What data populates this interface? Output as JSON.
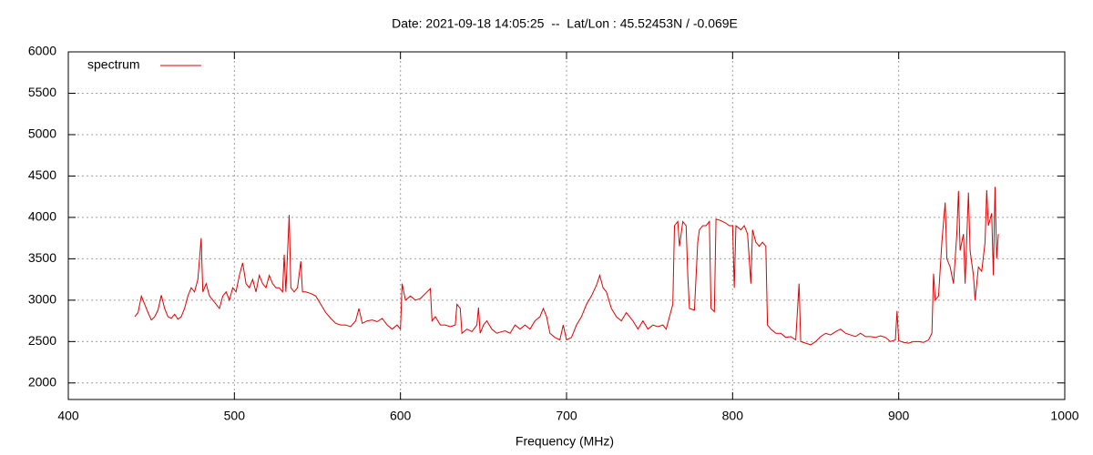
{
  "chart_data": {
    "type": "line",
    "title": "Date: 2021-09-18 14:05:25  --  Lat/Lon : 45.52453N / -0.069E",
    "x_label": "Frequency (MHz)",
    "xlim": [
      400,
      1000
    ],
    "xticks": [
      400,
      500,
      600,
      700,
      800,
      900,
      1000
    ],
    "ylim": [
      1800,
      6000
    ],
    "yticks": [
      2000,
      2500,
      3000,
      3500,
      4000,
      4500,
      5000,
      5500,
      6000
    ],
    "grid": true,
    "legend": "upper left",
    "x": [
      440,
      442,
      444,
      446,
      448,
      450,
      452,
      454,
      456,
      458,
      460,
      462,
      464,
      466,
      468,
      470,
      472,
      474,
      476,
      478,
      480,
      481,
      483,
      485,
      487,
      489,
      491,
      493,
      495,
      497,
      499,
      501,
      503,
      505,
      507,
      509,
      511,
      513,
      515,
      517,
      519,
      521,
      523,
      525,
      527,
      529,
      530,
      531,
      533,
      534,
      536,
      538,
      540,
      541,
      543,
      546,
      549,
      552,
      555,
      558,
      561,
      564,
      567,
      570,
      573,
      575,
      577,
      580,
      583,
      586,
      589,
      592,
      595,
      598,
      600,
      601,
      603,
      606,
      609,
      612,
      615,
      618,
      619,
      621,
      624,
      627,
      630,
      633,
      634,
      636,
      637,
      640,
      643,
      646,
      647,
      648,
      650,
      652,
      655,
      658,
      661,
      663,
      666,
      669,
      672,
      675,
      678,
      681,
      684,
      686,
      688,
      690,
      693,
      696,
      698,
      700,
      703,
      706,
      709,
      712,
      715,
      718,
      720,
      722,
      724,
      727,
      730,
      733,
      736,
      738,
      740,
      743,
      746,
      749,
      752,
      755,
      758,
      760,
      762,
      764,
      765,
      767,
      768,
      770,
      772,
      773,
      774,
      777,
      779,
      780,
      782,
      784,
      786,
      787,
      789,
      790,
      793,
      796,
      798,
      800,
      801,
      802,
      805,
      807,
      809,
      811,
      812,
      814,
      816,
      818,
      820,
      821,
      823,
      826,
      829,
      832,
      835,
      838,
      840,
      841,
      844,
      847,
      850,
      853,
      856,
      859,
      862,
      865,
      868,
      871,
      874,
      877,
      880,
      883,
      886,
      889,
      892,
      895,
      898,
      899,
      900,
      903,
      906,
      909,
      912,
      915,
      918,
      920,
      921,
      922,
      924,
      926,
      928,
      929,
      931,
      933,
      935,
      936,
      937,
      939,
      940,
      942,
      943,
      945,
      946,
      948,
      950,
      952,
      953,
      954,
      956,
      957,
      958,
      959,
      960
    ],
    "series": [
      {
        "name": "spectrum",
        "color": "#e00000",
        "values": [
          2800,
          2850,
          3050,
          2950,
          2850,
          2760,
          2800,
          2880,
          3060,
          2900,
          2800,
          2780,
          2830,
          2770,
          2800,
          2900,
          3050,
          3150,
          3100,
          3250,
          3750,
          3100,
          3200,
          3050,
          3000,
          2950,
          2900,
          3050,
          3100,
          3000,
          3150,
          3100,
          3300,
          3450,
          3200,
          3150,
          3250,
          3100,
          3300,
          3200,
          3150,
          3300,
          3200,
          3150,
          3150,
          3100,
          3550,
          3100,
          4030,
          3150,
          3100,
          3150,
          3470,
          3100,
          3100,
          3080,
          3050,
          2950,
          2850,
          2780,
          2720,
          2700,
          2700,
          2680,
          2750,
          2900,
          2720,
          2750,
          2760,
          2740,
          2780,
          2700,
          2650,
          2700,
          2650,
          3200,
          3000,
          3050,
          3000,
          3020,
          3080,
          3140,
          2750,
          2800,
          2700,
          2700,
          2680,
          2700,
          2950,
          2900,
          2600,
          2650,
          2620,
          2700,
          2910,
          2600,
          2700,
          2750,
          2650,
          2600,
          2620,
          2630,
          2600,
          2700,
          2650,
          2700,
          2650,
          2750,
          2800,
          2900,
          2800,
          2600,
          2550,
          2520,
          2700,
          2520,
          2550,
          2700,
          2800,
          2950,
          3050,
          3180,
          3300,
          3150,
          3100,
          2900,
          2800,
          2750,
          2850,
          2800,
          2750,
          2650,
          2750,
          2650,
          2700,
          2680,
          2700,
          2650,
          2800,
          2950,
          3900,
          3950,
          3650,
          3950,
          3900,
          3300,
          2900,
          2880,
          3700,
          3850,
          3900,
          3900,
          3950,
          2900,
          2860,
          3980,
          3960,
          3930,
          3900,
          3900,
          3150,
          3900,
          3850,
          3900,
          3800,
          3200,
          3850,
          3700,
          3650,
          3700,
          3650,
          2700,
          2650,
          2600,
          2600,
          2550,
          2560,
          2520,
          3200,
          2500,
          2480,
          2460,
          2500,
          2560,
          2600,
          2580,
          2620,
          2650,
          2600,
          2580,
          2560,
          2600,
          2560,
          2560,
          2550,
          2570,
          2550,
          2500,
          2520,
          2870,
          2510,
          2490,
          2480,
          2500,
          2500,
          2490,
          2520,
          2600,
          3320,
          3000,
          3050,
          3700,
          4180,
          3500,
          3400,
          3200,
          3800,
          4320,
          3600,
          3800,
          3200,
          4300,
          3600,
          3300,
          3000,
          3400,
          3350,
          3700,
          4330,
          3900,
          4050,
          3300,
          4370,
          3500,
          3800
        ]
      }
    ]
  }
}
